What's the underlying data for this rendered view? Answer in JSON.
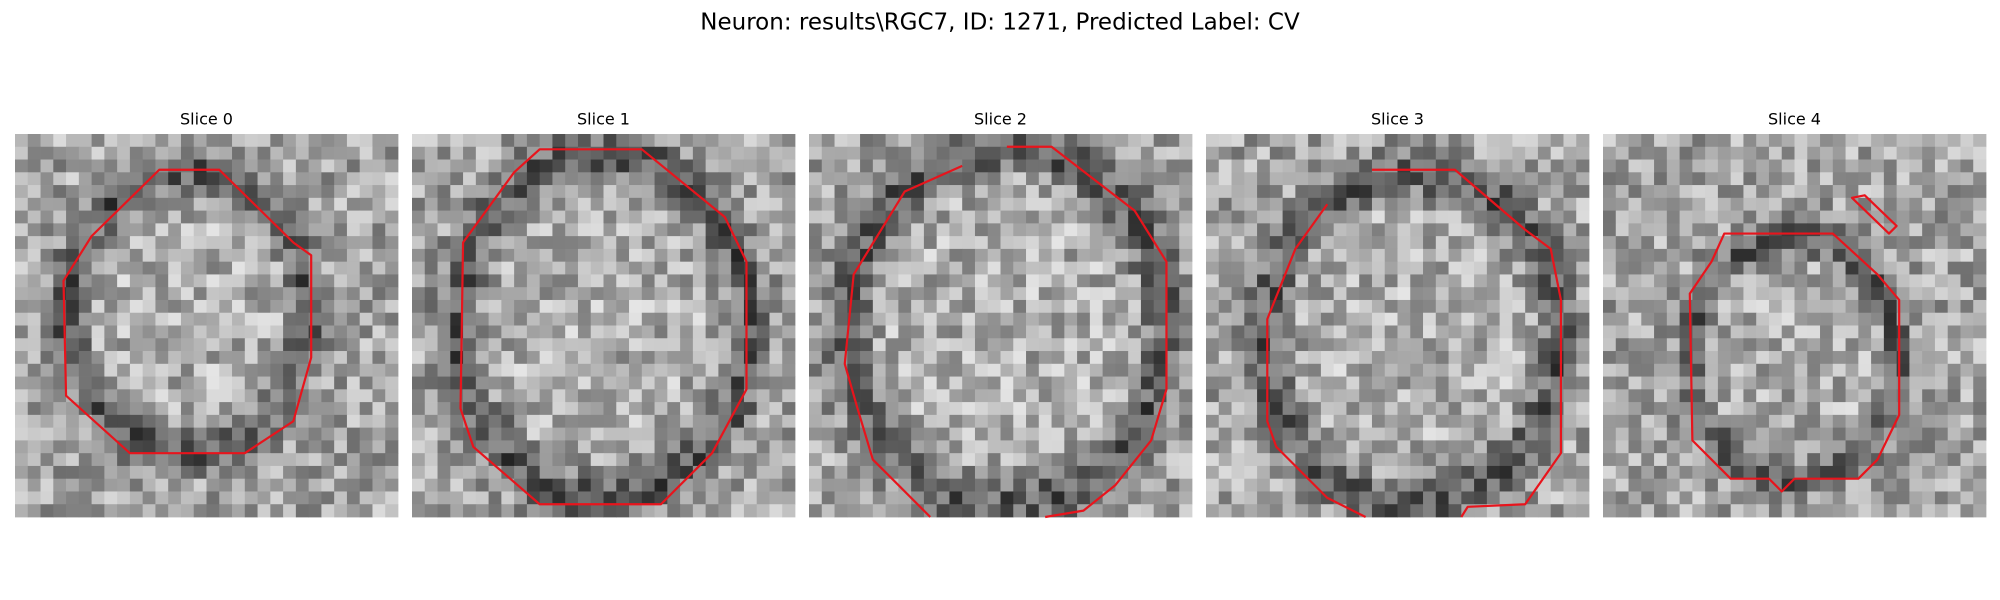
{
  "title": "Neuron: results\\RGC7, ID: 1271, Predicted Label: CV",
  "panels": [
    {
      "title": "Slice 0"
    },
    {
      "title": "Slice 1"
    },
    {
      "title": "Slice 2"
    },
    {
      "title": "Slice 3"
    },
    {
      "title": "Slice 4"
    }
  ]
}
